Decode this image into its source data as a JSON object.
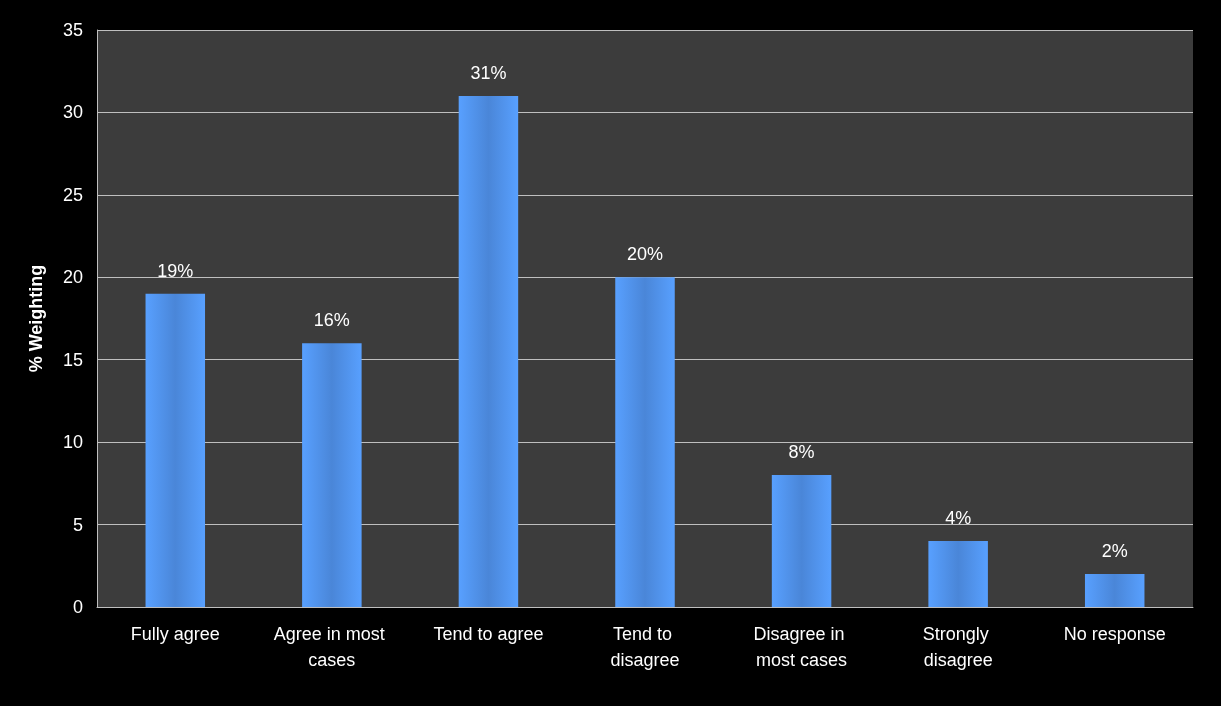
{
  "chart_data": {
    "type": "bar",
    "ylabel": "% Weighting",
    "categories": [
      "Fully agree",
      "Agree in most cases",
      "Tend to agree",
      "Tend to disagree",
      "Disagree in most cases",
      "Strongly disagree",
      "No response"
    ],
    "values": [
      19,
      16,
      31,
      20,
      8,
      4,
      2
    ],
    "value_labels": [
      "19%",
      "16%",
      "31%",
      "20%",
      "8%",
      "4%",
      "2%"
    ],
    "color": "#4a86d8",
    "ylim": [
      0,
      35
    ],
    "yticks": [
      0,
      5,
      10,
      15,
      20,
      25,
      30,
      35
    ],
    "grid": "y"
  }
}
